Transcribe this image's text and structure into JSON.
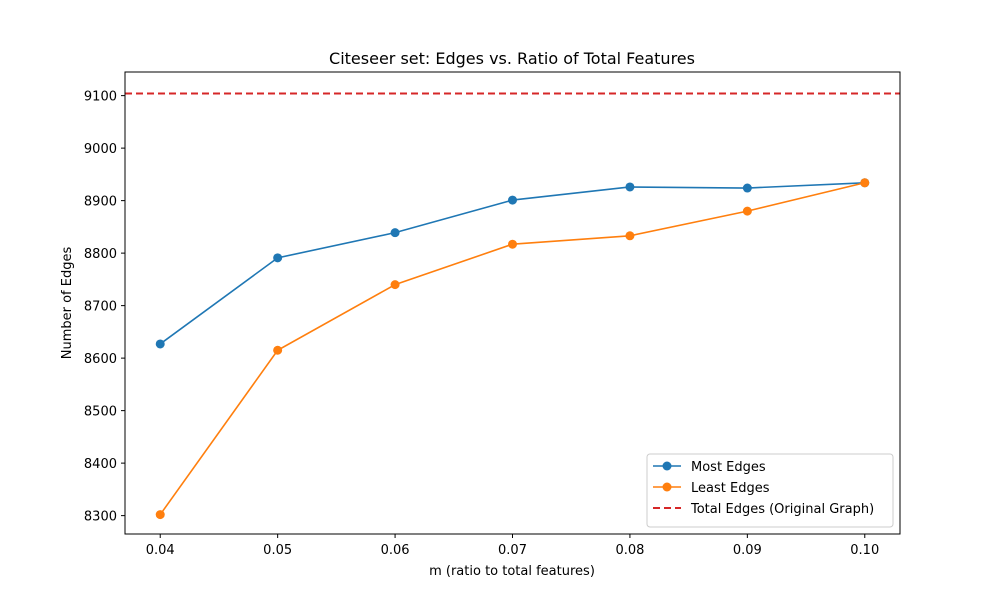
{
  "chart_data": {
    "type": "line",
    "title": "Citeseer set: Edges vs. Ratio of Total Features",
    "xlabel": "m (ratio to total features)",
    "ylabel": "Number of Edges",
    "x": [
      0.04,
      0.05,
      0.06,
      0.07,
      0.08,
      0.09,
      0.1
    ],
    "x_tick_labels": [
      "0.04",
      "0.05",
      "0.06",
      "0.07",
      "0.08",
      "0.09",
      "0.10"
    ],
    "y_ticks": [
      8300,
      8400,
      8500,
      8600,
      8700,
      8800,
      8900,
      9000,
      9100
    ],
    "xlim": [
      0.037,
      0.103
    ],
    "ylim": [
      8265,
      9145
    ],
    "series": [
      {
        "name": "Most Edges",
        "color": "#1f77b4",
        "marker": "circle",
        "values": [
          8627,
          8791,
          8839,
          8901,
          8926,
          8924,
          8934
        ]
      },
      {
        "name": "Least Edges",
        "color": "#ff7f0e",
        "marker": "circle",
        "values": [
          8302,
          8615,
          8740,
          8817,
          8833,
          8880,
          8934
        ]
      }
    ],
    "reference_lines": [
      {
        "name": "Total Edges (Original Graph)",
        "color": "#d62728",
        "style": "dashed",
        "y": 9104
      }
    ],
    "grid": false,
    "legend_position": "lower-right"
  }
}
